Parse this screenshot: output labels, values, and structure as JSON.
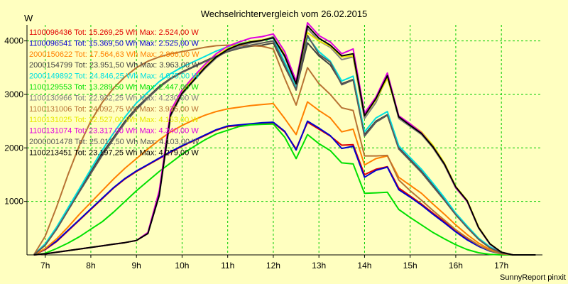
{
  "chart_data": {
    "type": "line",
    "title": "Wechselrichtervergleich vom 26.02.2015",
    "ylabel": "W",
    "footer": "SunnyReport pinxit",
    "ylim": [
      0,
      4300
    ],
    "xlim": [
      6.6,
      17.9
    ],
    "y_ticks": [
      1000,
      2000,
      3000,
      4000
    ],
    "x_ticks": [
      7,
      8,
      9,
      10,
      11,
      12,
      13,
      14,
      15,
      16,
      17
    ],
    "x_tick_labels": [
      "7h",
      "8h",
      "9h",
      "10h",
      "11h",
      "12h",
      "13h",
      "14h",
      "15h",
      "16h",
      "17h"
    ],
    "grid": true,
    "legend_position": "top-left",
    "colors": {
      "background": "#ffffc0",
      "grid": "#00cc00",
      "axis": "#000000"
    },
    "series": [
      {
        "name": "1100096436 Tot: 15.269,25 Wh Max: 2.524,00 W",
        "color": "#e00000",
        "x": [
          6.75,
          7.0,
          7.25,
          7.5,
          7.75,
          8.0,
          8.25,
          8.5,
          8.75,
          9.0,
          9.25,
          9.5,
          9.75,
          10.0,
          10.25,
          10.5,
          10.75,
          11.0,
          11.25,
          11.5,
          11.75,
          12.0,
          12.25,
          12.5,
          12.75,
          13.0,
          13.25,
          13.5,
          13.75,
          14.0,
          14.25,
          14.5,
          14.75,
          15.0,
          15.25,
          15.5,
          15.75,
          16.0,
          16.25,
          16.5,
          16.75,
          17.0,
          17.25,
          17.5,
          17.75
        ],
        "y": [
          0,
          100,
          250,
          450,
          650,
          850,
          1050,
          1250,
          1420,
          1560,
          1680,
          1800,
          1920,
          2030,
          2130,
          2230,
          2330,
          2400,
          2420,
          2440,
          2460,
          2470,
          2300,
          1980,
          2480,
          2350,
          2220,
          2050,
          2060,
          1500,
          1600,
          1650,
          1250,
          1100,
          950,
          780,
          620,
          450,
          300,
          170,
          80,
          30,
          0,
          0,
          0
        ]
      },
      {
        "name": "1100096541 Tot: 15.369,50 Wh Max: 2.525,00 W",
        "color": "#0000d0",
        "x": [
          6.75,
          7.0,
          7.25,
          7.5,
          7.75,
          8.0,
          8.25,
          8.5,
          8.75,
          9.0,
          9.25,
          9.5,
          9.75,
          10.0,
          10.25,
          10.5,
          10.75,
          11.0,
          11.25,
          11.5,
          11.75,
          12.0,
          12.25,
          12.5,
          12.75,
          13.0,
          13.25,
          13.5,
          13.75,
          14.0,
          14.25,
          14.5,
          14.75,
          15.0,
          15.25,
          15.5,
          15.75,
          16.0,
          16.25,
          16.5,
          16.75,
          17.0,
          17.25,
          17.5,
          17.75
        ],
        "y": [
          0,
          110,
          260,
          460,
          660,
          860,
          1060,
          1260,
          1430,
          1570,
          1690,
          1810,
          1930,
          2040,
          2140,
          2240,
          2340,
          2410,
          2430,
          2450,
          2470,
          2480,
          2310,
          1960,
          2500,
          2370,
          2230,
          1990,
          2030,
          1450,
          1580,
          1640,
          1220,
          1080,
          930,
          760,
          600,
          430,
          280,
          160,
          70,
          20,
          0,
          0,
          0
        ]
      },
      {
        "name": "2000150622 Tot: 17.564,63 Wh Max: 2.866,00 W",
        "color": "#ff8000",
        "x": [
          6.75,
          7.0,
          7.25,
          7.5,
          7.75,
          8.0,
          8.25,
          8.5,
          8.75,
          9.0,
          9.25,
          9.5,
          9.75,
          10.0,
          10.25,
          10.5,
          10.75,
          11.0,
          11.25,
          11.5,
          11.75,
          12.0,
          12.25,
          12.5,
          12.75,
          13.0,
          13.25,
          13.5,
          13.75,
          14.0,
          14.25,
          14.5,
          14.75,
          15.0,
          15.25,
          15.5,
          15.75,
          16.0,
          16.25,
          16.5,
          16.75,
          17.0,
          17.25,
          17.5,
          17.75
        ],
        "y": [
          0,
          120,
          300,
          520,
          760,
          980,
          1200,
          1420,
          1620,
          1800,
          1980,
          2150,
          2300,
          2420,
          2520,
          2610,
          2680,
          2730,
          2760,
          2790,
          2810,
          2830,
          2550,
          2250,
          2860,
          2700,
          2560,
          2300,
          2350,
          1680,
          1800,
          1850,
          1450,
          1300,
          1150,
          950,
          760,
          560,
          380,
          220,
          100,
          30,
          0,
          0,
          0
        ]
      },
      {
        "name": "2000154799 Tot: 23.951,50 Wh Max: 3.963,00 W",
        "color": "#404040",
        "x": [
          6.75,
          7.0,
          7.25,
          7.5,
          7.75,
          8.0,
          8.25,
          8.5,
          8.75,
          9.0,
          9.25,
          9.5,
          9.75,
          10.0,
          10.25,
          10.5,
          10.75,
          11.0,
          11.25,
          11.5,
          11.75,
          12.0,
          12.25,
          12.5,
          12.75,
          13.0,
          13.25,
          13.5,
          13.75,
          14.0,
          14.25,
          14.5,
          14.75,
          15.0,
          15.25,
          15.5,
          15.75,
          16.0,
          16.25,
          16.5,
          16.75,
          17.0,
          17.25,
          17.5,
          17.75
        ],
        "y": [
          0,
          200,
          500,
          850,
          1200,
          1550,
          1900,
          2200,
          2500,
          2750,
          2950,
          3150,
          3300,
          3420,
          3520,
          3620,
          3720,
          3800,
          3860,
          3900,
          3920,
          3960,
          3520,
          3100,
          3963,
          3720,
          3550,
          3200,
          3280,
          2250,
          2500,
          2620,
          2000,
          1780,
          1560,
          1300,
          1040,
          760,
          520,
          300,
          140,
          40,
          0,
          0,
          0
        ]
      },
      {
        "name": "2000149892 Tot: 24.846,25 Wh Max: 4.075,00 W",
        "color": "#00e0e0",
        "x": [
          6.75,
          7.0,
          7.25,
          7.5,
          7.75,
          8.0,
          8.25,
          8.5,
          8.75,
          9.0,
          9.25,
          9.5,
          9.75,
          10.0,
          10.25,
          10.5,
          10.75,
          11.0,
          11.25,
          11.5,
          11.75,
          12.0,
          12.25,
          12.5,
          12.75,
          13.0,
          13.25,
          13.5,
          13.75,
          14.0,
          14.25,
          14.5,
          14.75,
          15.0,
          15.25,
          15.5,
          15.75,
          16.0,
          16.25,
          16.5,
          16.75,
          17.0,
          17.25,
          17.5,
          17.75
        ],
        "y": [
          0,
          210,
          520,
          880,
          1240,
          1600,
          1960,
          2280,
          2580,
          2840,
          3040,
          3240,
          3390,
          3510,
          3610,
          3710,
          3810,
          3890,
          3950,
          3990,
          4010,
          4050,
          3600,
          3150,
          4075,
          3800,
          3620,
          3250,
          3340,
          2300,
          2560,
          2680,
          2040,
          1820,
          1600,
          1340,
          1070,
          780,
          540,
          310,
          150,
          40,
          0,
          0,
          0
        ]
      },
      {
        "name": "1100129553 Tot: 13.289,50 Wh Max: 2.447,00 W",
        "color": "#00e000",
        "x": [
          6.75,
          7.0,
          7.25,
          7.5,
          7.75,
          8.0,
          8.25,
          8.5,
          8.75,
          9.0,
          9.25,
          9.5,
          9.75,
          10.0,
          10.25,
          10.5,
          10.75,
          11.0,
          11.25,
          11.5,
          11.75,
          12.0,
          12.25,
          12.5,
          12.75,
          13.0,
          13.25,
          13.5,
          13.75,
          14.0,
          14.25,
          14.5,
          14.75,
          15.0,
          15.25,
          15.5,
          15.75,
          16.0,
          16.25,
          16.5,
          16.75,
          17.0,
          17.25,
          17.5,
          17.75
        ],
        "y": [
          0,
          30,
          120,
          220,
          340,
          480,
          620,
          800,
          1000,
          1200,
          1380,
          1560,
          1720,
          1880,
          2020,
          2150,
          2260,
          2330,
          2400,
          2430,
          2440,
          2447,
          2200,
          1800,
          2250,
          2080,
          1950,
          1720,
          1700,
          1150,
          1160,
          1170,
          850,
          700,
          560,
          420,
          300,
          190,
          100,
          40,
          10,
          0,
          0,
          0,
          0
        ]
      },
      {
        "name": "1100130966 Tot: 22.932,25 Wh Max: 4.230,00 W",
        "color": "#808080",
        "x": [
          6.75,
          7.0,
          7.25,
          7.5,
          7.75,
          8.0,
          8.25,
          8.5,
          8.75,
          9.0,
          9.25,
          9.5,
          9.75,
          10.0,
          10.25,
          10.5,
          10.75,
          11.0,
          11.25,
          11.5,
          11.75,
          12.0,
          12.25,
          12.5,
          12.75,
          13.0,
          13.25,
          13.5,
          13.75,
          14.0,
          14.25,
          14.5,
          14.75,
          15.0,
          15.25,
          15.5,
          15.75,
          16.0,
          16.25,
          16.5,
          16.75,
          17.0,
          17.25,
          17.5,
          17.75
        ],
        "y": [
          0,
          20,
          50,
          80,
          110,
          140,
          170,
          200,
          230,
          270,
          400,
          1100,
          2600,
          3000,
          3250,
          3480,
          3680,
          3820,
          3900,
          3960,
          4000,
          4080,
          3700,
          3180,
          4230,
          4000,
          3880,
          3650,
          3700,
          2550,
          2850,
          3350,
          2550,
          2400,
          2250,
          2000,
          1680,
          1250,
          1000,
          500,
          200,
          50,
          0,
          0,
          0
        ]
      },
      {
        "name": "1100131006 Tot: 24.092,75 Wh Max: 3.935,00 W",
        "color": "#b87333",
        "x": [
          6.75,
          7.0,
          7.25,
          7.5,
          7.75,
          8.0,
          8.25,
          8.5,
          8.75,
          9.0,
          9.25,
          9.5,
          9.75,
          10.0,
          10.25,
          10.5,
          10.75,
          11.0,
          11.25,
          11.5,
          11.75,
          12.0,
          12.25,
          12.5,
          12.75,
          13.0,
          13.25,
          13.5,
          13.75,
          14.0,
          14.25,
          14.5,
          14.75,
          15.0,
          15.25,
          15.5,
          15.75,
          16.0,
          16.25,
          16.5,
          16.75,
          17.0,
          17.25,
          17.5,
          17.75
        ],
        "y": [
          0,
          350,
          900,
          1500,
          2050,
          2500,
          2850,
          3120,
          3330,
          3500,
          3620,
          3700,
          3760,
          3800,
          3840,
          3880,
          3910,
          3920,
          3920,
          3910,
          3900,
          3850,
          3300,
          2800,
          3500,
          3200,
          3000,
          2750,
          2700,
          1850,
          1850,
          1860,
          1400,
          1200,
          1020,
          830,
          650,
          470,
          320,
          180,
          80,
          20,
          0,
          0,
          0
        ]
      },
      {
        "name": "1100131025 Tot: 22.527,00 Wh Max: 4.153,00 W",
        "color": "#e8e800",
        "x": [
          6.75,
          7.0,
          7.25,
          7.5,
          7.75,
          8.0,
          8.25,
          8.5,
          8.75,
          9.0,
          9.25,
          9.5,
          9.75,
          10.0,
          10.25,
          10.5,
          10.75,
          11.0,
          11.25,
          11.5,
          11.75,
          12.0,
          12.25,
          12.5,
          12.75,
          13.0,
          13.25,
          13.5,
          13.75,
          14.0,
          14.25,
          14.5,
          14.75,
          15.0,
          15.25,
          15.5,
          15.75,
          16.0,
          16.25,
          16.5,
          16.75,
          17.0,
          17.25,
          17.5,
          17.75
        ],
        "y": [
          0,
          20,
          50,
          80,
          110,
          140,
          170,
          200,
          230,
          270,
          410,
          1150,
          2650,
          3050,
          3300,
          3520,
          3720,
          3860,
          3940,
          3990,
          4020,
          4060,
          3750,
          3200,
          4153,
          4000,
          3900,
          3700,
          3720,
          2600,
          2900,
          3300,
          2600,
          2450,
          2300,
          2050,
          1720,
          1280,
          1020,
          520,
          210,
          50,
          0,
          0,
          0
        ]
      },
      {
        "name": "1100131074 Tot: 23.317,00 Wh Max: 4.340,00 W",
        "color": "#e000e0",
        "x": [
          6.75,
          7.0,
          7.25,
          7.5,
          7.75,
          8.0,
          8.25,
          8.5,
          8.75,
          9.0,
          9.25,
          9.5,
          9.75,
          10.0,
          10.25,
          10.5,
          10.75,
          11.0,
          11.25,
          11.5,
          11.75,
          12.0,
          12.25,
          12.5,
          12.75,
          13.0,
          13.25,
          13.5,
          13.75,
          14.0,
          14.25,
          14.5,
          14.75,
          15.0,
          15.25,
          15.5,
          15.75,
          16.0,
          16.25,
          16.5,
          16.75,
          17.0,
          17.25,
          17.5,
          17.75
        ],
        "y": [
          0,
          20,
          50,
          80,
          110,
          140,
          170,
          200,
          230,
          270,
          420,
          1200,
          2700,
          3080,
          3330,
          3560,
          3760,
          3900,
          3980,
          4050,
          4080,
          4130,
          3800,
          3250,
          4340,
          4100,
          3980,
          3760,
          3850,
          2650,
          2950,
          3400,
          2600,
          2450,
          2280,
          2020,
          1700,
          1260,
          1000,
          510,
          200,
          50,
          0,
          0,
          0
        ]
      },
      {
        "name": "2000001478 Tot: 25.012,50 Wh Max: 4.103,00 W",
        "color": "#5a5a5a",
        "x": [
          6.75,
          7.0,
          7.25,
          7.5,
          7.75,
          8.0,
          8.25,
          8.5,
          8.75,
          9.0,
          9.25,
          9.5,
          9.75,
          10.0,
          10.25,
          10.5,
          10.75,
          11.0,
          11.25,
          11.5,
          11.75,
          12.0,
          12.25,
          12.5,
          12.75,
          13.0,
          13.25,
          13.5,
          13.75,
          14.0,
          14.25,
          14.5,
          14.75,
          15.0,
          15.25,
          15.5,
          15.75,
          16.0,
          16.25,
          16.5,
          16.75,
          17.0,
          17.25,
          17.5,
          17.75
        ],
        "y": [
          0,
          180,
          480,
          830,
          1180,
          1520,
          1860,
          2170,
          2470,
          2720,
          2930,
          3130,
          3290,
          3410,
          3510,
          3610,
          3710,
          3800,
          3870,
          3920,
          3960,
          4000,
          3550,
          3080,
          4103,
          3750,
          3600,
          3180,
          3270,
          2220,
          2480,
          2610,
          1980,
          1760,
          1540,
          1280,
          1020,
          750,
          510,
          290,
          130,
          40,
          0,
          0,
          0
        ]
      },
      {
        "name": "1100213451 Tot: 23.197,25 Wh Max: 4.279,00 W",
        "color": "#000000",
        "x": [
          6.75,
          7.0,
          7.25,
          7.5,
          7.75,
          8.0,
          8.25,
          8.5,
          8.75,
          9.0,
          9.25,
          9.5,
          9.75,
          10.0,
          10.25,
          10.5,
          10.75,
          11.0,
          11.25,
          11.5,
          11.75,
          12.0,
          12.25,
          12.5,
          12.75,
          13.0,
          13.25,
          13.5,
          13.75,
          14.0,
          14.25,
          14.5,
          14.75,
          15.0,
          15.25,
          15.5,
          15.75,
          16.0,
          16.25,
          16.5,
          16.75,
          17.0,
          17.25,
          17.5,
          17.75
        ],
        "y": [
          0,
          20,
          50,
          80,
          110,
          140,
          170,
          200,
          230,
          270,
          400,
          1120,
          2620,
          3020,
          3260,
          3500,
          3700,
          3840,
          3930,
          3980,
          4010,
          4060,
          3720,
          3200,
          4279,
          4050,
          3920,
          3720,
          3760,
          2600,
          2920,
          3350,
          2580,
          2420,
          2270,
          2020,
          1700,
          1270,
          1010,
          510,
          205,
          50,
          0,
          0,
          0
        ]
      }
    ]
  }
}
